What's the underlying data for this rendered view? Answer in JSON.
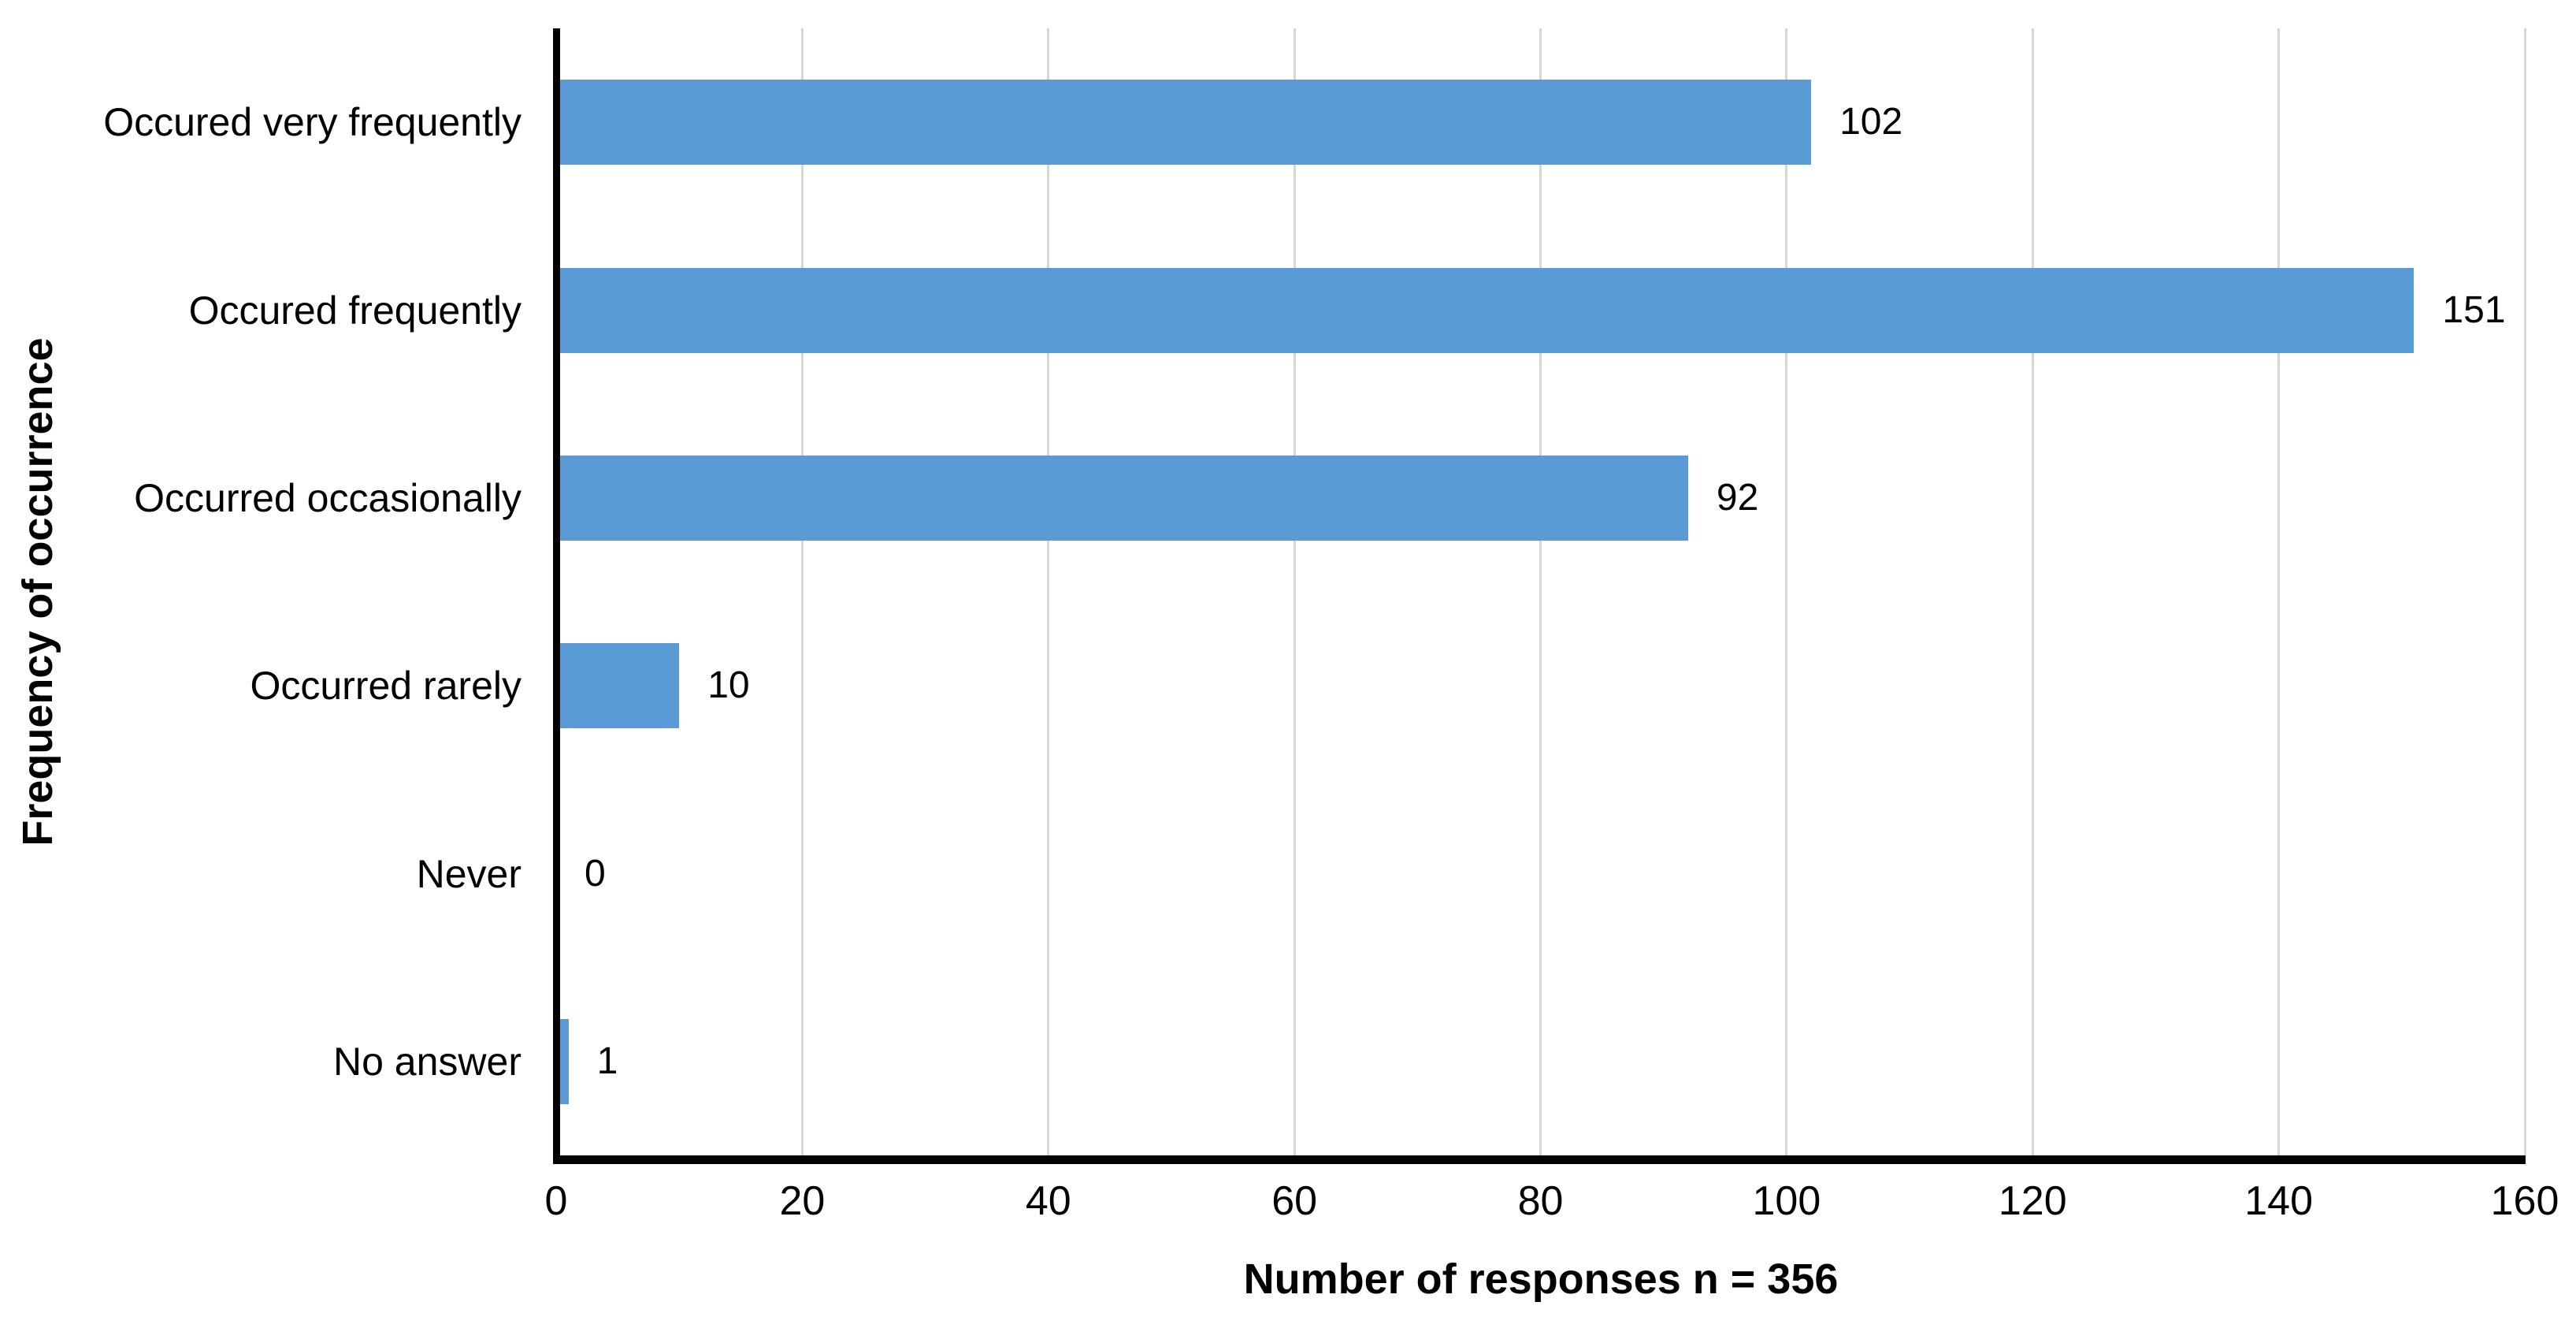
{
  "chart_data": {
    "type": "bar",
    "orientation": "horizontal",
    "categories": [
      "Occured very frequently",
      "Occured frequently",
      "Occurred occasionally",
      "Occurred rarely",
      "Never",
      "No answer"
    ],
    "values": [
      102,
      151,
      92,
      10,
      0,
      1
    ],
    "value_labels": [
      "102",
      "151",
      "92",
      "10",
      "0",
      "1"
    ],
    "xlabel": "Number of responses n = 356",
    "ylabel": "Frequency of occurrence",
    "xlim": [
      0,
      160
    ],
    "xticks": [
      0,
      20,
      40,
      60,
      80,
      100,
      120,
      140,
      160
    ],
    "grid": "vertical-only",
    "legend": "none",
    "title": "",
    "colors": {
      "bar": "#5B9BD5",
      "gridline": "#D6D6D6",
      "axis": "#000000",
      "text": "#000000",
      "background": "#FFFFFF"
    }
  }
}
